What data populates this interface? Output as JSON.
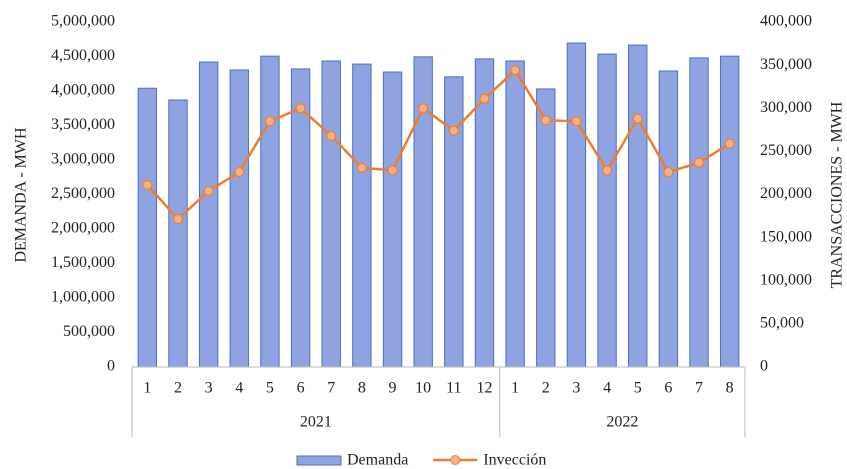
{
  "chart_data": {
    "type": "combo",
    "y_label": "DEMANDA - MWH",
    "y2_label": "TRANSACCIONES - MWH",
    "groups": [
      {
        "name": "2021",
        "categories": [
          "1",
          "2",
          "3",
          "4",
          "5",
          "6",
          "7",
          "8",
          "9",
          "10",
          "11",
          "12"
        ]
      },
      {
        "name": "2022",
        "categories": [
          "1",
          "2",
          "3",
          "4",
          "5",
          "6",
          "7",
          "8"
        ]
      }
    ],
    "series": [
      {
        "name": "Demanda",
        "type": "bar",
        "color": "#8fa3e0",
        "border": "#4a6fc4",
        "values": [
          4040000,
          3870000,
          4420000,
          4305000,
          4505000,
          4320000,
          4435000,
          4390000,
          4275000,
          4495000,
          4205000,
          4465000,
          4435000,
          4030000,
          4695000,
          4535000,
          4665000,
          4290000,
          4480000,
          4505000
        ]
      },
      {
        "name": "Invección",
        "type": "line",
        "axis": "y2",
        "color": "#ed7d31",
        "marker_fill": "#f4b183",
        "values": [
          211000,
          171600,
          204000,
          226000,
          285000,
          300000,
          268000,
          231000,
          228000,
          300000,
          274000,
          311000,
          344000,
          286000,
          285000,
          228000,
          288000,
          226000,
          237000,
          259000
        ]
      }
    ],
    "ylim": [
      0,
      5000000
    ],
    "yticks": [
      0,
      {
        "value": 500000,
        "label": "500,000"
      },
      {
        "value": 1000000,
        "label": "1,000,000"
      },
      {
        "value": 1500000,
        "label": "1,500,000"
      },
      {
        "value": 2000000,
        "label": "2,000,000"
      },
      {
        "value": 2500000,
        "label": "2,500,000"
      },
      {
        "value": 3000000,
        "label": "3,000,000"
      },
      {
        "value": 3500000,
        "label": "3,500,000"
      },
      {
        "value": 4000000,
        "label": "4,000,000"
      },
      {
        "value": 4500000,
        "label": "4,500,000"
      },
      {
        "value": 5000000,
        "label": "5,000,000"
      }
    ],
    "y2lim": [
      0,
      400000
    ],
    "y2ticks": [
      0,
      {
        "value": 50000,
        "label": "50,000"
      },
      {
        "value": 100000,
        "label": "100,000"
      },
      {
        "value": 150000,
        "label": "150,000"
      },
      {
        "value": 200000,
        "label": "200,000"
      },
      {
        "value": 250000,
        "label": "250,000"
      },
      {
        "value": 300000,
        "label": "300,000"
      },
      {
        "value": 350000,
        "label": "350,000"
      },
      {
        "value": 400000,
        "label": "400,000"
      }
    ]
  }
}
